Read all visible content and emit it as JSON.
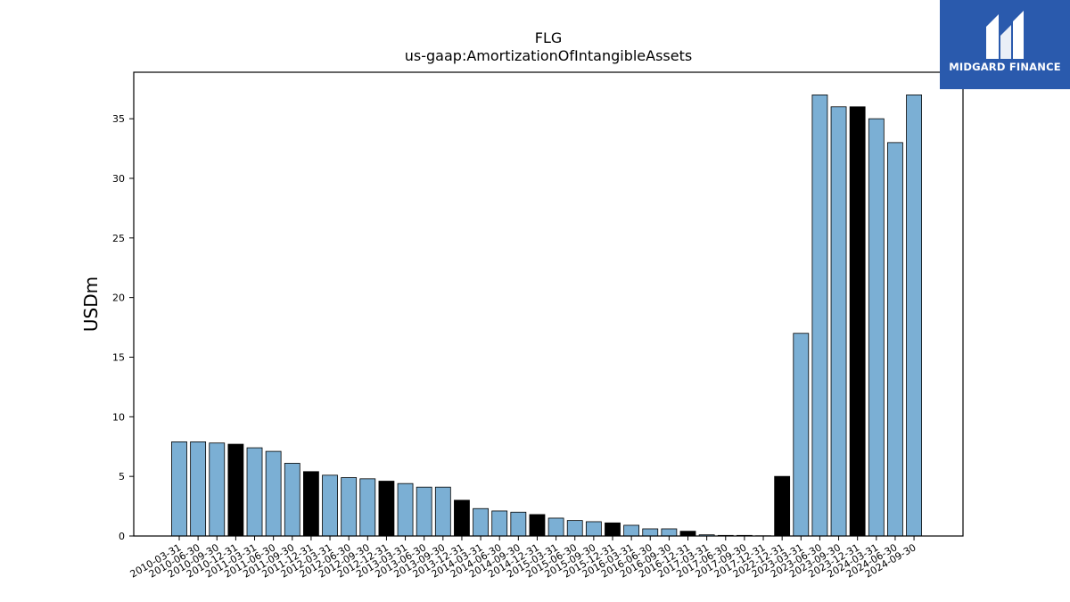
{
  "chart_data": {
    "type": "bar",
    "title": "FLG",
    "subtitle": "us-gaap:AmortizationOfIntangibleAssets",
    "xlabel": "",
    "ylabel": "USDm",
    "ylim": [
      0,
      38.9
    ],
    "yticks": [
      0,
      5,
      10,
      15,
      20,
      25,
      30,
      35
    ],
    "grid": false,
    "colors": {
      "quarter": "#7bafd4",
      "year_end": "#000000",
      "edge": "#000000"
    },
    "categories": [
      "2010-03-31",
      "2010-06-30",
      "2010-09-30",
      "2010-12-31",
      "2011-03-31",
      "2011-06-30",
      "2011-09-30",
      "2011-12-31",
      "2012-03-31",
      "2012-06-30",
      "2012-09-30",
      "2012-12-31",
      "2013-03-31",
      "2013-06-30",
      "2013-09-30",
      "2013-12-31",
      "2014-03-31",
      "2014-06-30",
      "2014-09-30",
      "2014-12-31",
      "2015-03-31",
      "2015-06-30",
      "2015-09-30",
      "2015-12-31",
      "2016-03-31",
      "2016-06-30",
      "2016-09-30",
      "2016-12-31",
      "2017-03-31",
      "2017-06-30",
      "2017-09-30",
      "2017-12-31",
      "2022-12-31",
      "2023-03-31",
      "2023-06-30",
      "2023-09-30",
      "2023-12-31",
      "2024-03-31",
      "2024-06-30",
      "2024-09-30"
    ],
    "values": [
      7.9,
      7.9,
      7.8,
      7.7,
      7.4,
      7.1,
      6.1,
      5.4,
      5.1,
      4.9,
      4.8,
      4.6,
      4.4,
      4.1,
      4.1,
      3.0,
      2.3,
      2.1,
      2.0,
      1.8,
      1.5,
      1.3,
      1.2,
      1.1,
      0.9,
      0.6,
      0.6,
      0.4,
      0.1,
      0.05,
      0.05,
      0.02,
      5.0,
      17.0,
      37.0,
      36.0,
      36.0,
      35.0,
      33.0,
      37.0
    ],
    "highlight": [
      false,
      false,
      false,
      true,
      false,
      false,
      false,
      true,
      false,
      false,
      false,
      true,
      false,
      false,
      false,
      true,
      false,
      false,
      false,
      true,
      false,
      false,
      false,
      true,
      false,
      false,
      false,
      true,
      false,
      false,
      false,
      false,
      true,
      false,
      false,
      false,
      true,
      false,
      false,
      false
    ]
  },
  "logo": {
    "text": "MIDGARD FINANCE",
    "icon": "midgard-logo-icon"
  }
}
